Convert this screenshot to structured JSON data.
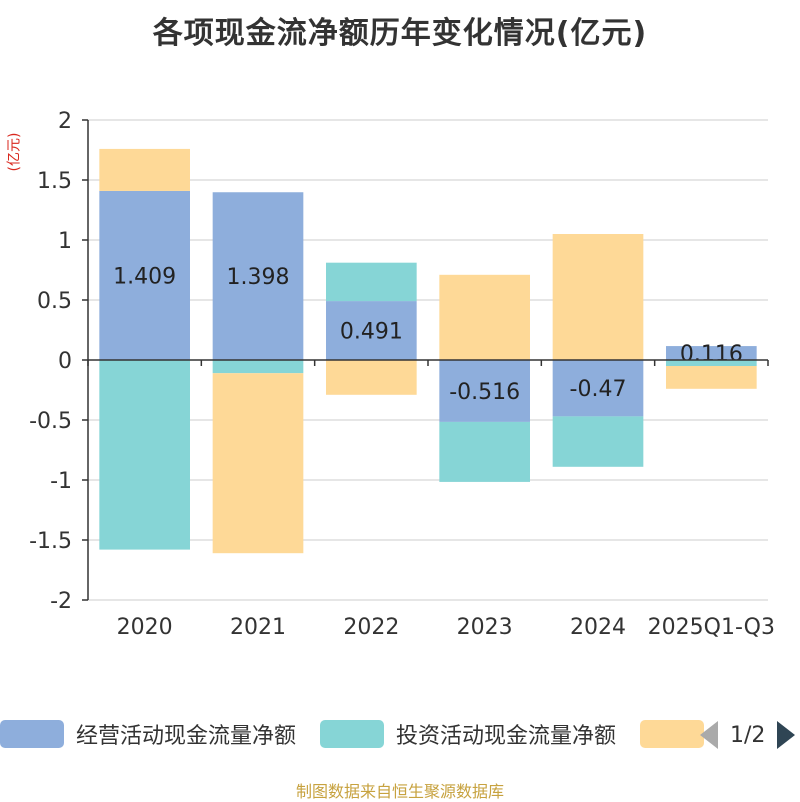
{
  "title": "各项现金流净额历年变化情况(亿元)",
  "unit_label": "(亿元)",
  "footer": "制图数据来自恒生聚源数据库",
  "legend": {
    "items": [
      {
        "label": "经营活动现金流量净额",
        "color": "#8eaedc"
      },
      {
        "label": "投资活动现金流量净额",
        "color": "#86d5d6"
      },
      {
        "label": "",
        "color": "#fed997"
      }
    ],
    "pager": "1/2"
  },
  "chart_data": {
    "type": "bar",
    "stacked": true,
    "title": "各项现金流净额历年变化情况(亿元)",
    "ylabel": "(亿元)",
    "ylim": [
      -2,
      2
    ],
    "yticks": [
      2,
      1.5,
      1,
      0.5,
      0,
      -0.5,
      -1,
      -1.5,
      -2
    ],
    "categories": [
      "2020",
      "2021",
      "2022",
      "2023",
      "2024",
      "2025Q1-Q3"
    ],
    "series": [
      {
        "name": "经营活动现金流量净额",
        "color": "#8eaedc",
        "values": [
          1.409,
          1.398,
          0.491,
          -0.516,
          -0.47,
          0.116
        ],
        "labels": [
          "1.409",
          "1.398",
          "0.491",
          "-0.516",
          "-0.47",
          "0.116"
        ]
      },
      {
        "name": "投资活动现金流量净额",
        "color": "#86d5d6",
        "values": [
          -1.58,
          -0.11,
          0.32,
          -0.5,
          -0.42,
          -0.05
        ],
        "labels": []
      },
      {
        "name": "",
        "color": "#fed997",
        "values": [
          0.35,
          -1.5,
          -0.29,
          0.71,
          1.05,
          -0.19
        ],
        "labels": []
      }
    ]
  }
}
